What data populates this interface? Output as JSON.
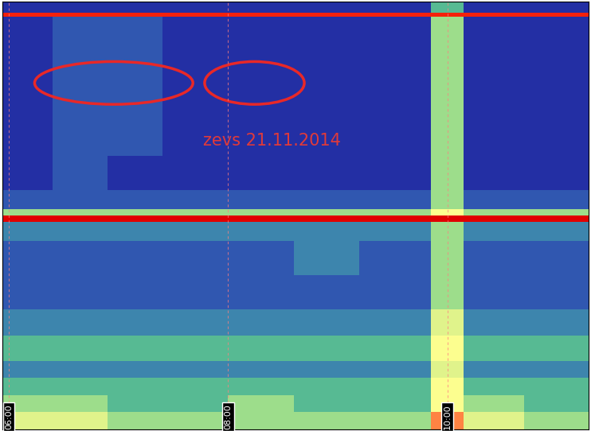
{
  "chart_data": {
    "type": "heatmap",
    "annotations": [
      "zevs 21.11.2014"
    ],
    "x_edges": [
      5.94,
      6.4,
      6.9,
      7.4,
      8.0,
      8.6,
      9.2,
      9.85,
      10.15,
      10.7,
      11.29
    ],
    "y_edges": [
      0,
      4,
      8,
      12,
      16,
      22,
      28,
      36,
      44,
      48.5,
      50,
      51.5,
      56,
      64,
      72,
      80,
      88,
      96.5,
      97.5,
      100
    ],
    "cells": [
      [
        6,
        6,
        5,
        5,
        5,
        5,
        5,
        8,
        6,
        5
      ],
      [
        5,
        5,
        4,
        4,
        5,
        4,
        4,
        7,
        5,
        4
      ],
      [
        4,
        4,
        4,
        4,
        4,
        4,
        4,
        7,
        4,
        4
      ],
      [
        3,
        3,
        3,
        3,
        3,
        3,
        3,
        6,
        3,
        3
      ],
      [
        4,
        4,
        4,
        4,
        4,
        4,
        4,
        7,
        4,
        4
      ],
      [
        3,
        3,
        3,
        3,
        3,
        3,
        3,
        6,
        3,
        3
      ],
      [
        2,
        2,
        2,
        2,
        2,
        2,
        2,
        5,
        2,
        2
      ],
      [
        2,
        2,
        2,
        2,
        2,
        3,
        2,
        5,
        2,
        2
      ],
      [
        3,
        3,
        3,
        3,
        3,
        3,
        3,
        5,
        3,
        3
      ],
      [
        10,
        10,
        10,
        10,
        10,
        10,
        10,
        10,
        10,
        10
      ],
      [
        5,
        5,
        5,
        5,
        5,
        5,
        5,
        7,
        5,
        5
      ],
      [
        2,
        2,
        2,
        2,
        2,
        2,
        2,
        5,
        2,
        2
      ],
      [
        1,
        2,
        1,
        1,
        1,
        1,
        1,
        5,
        1,
        1
      ],
      [
        1,
        2,
        2,
        1,
        1,
        1,
        1,
        5,
        1,
        1
      ],
      [
        1,
        2,
        2,
        1,
        1,
        1,
        1,
        5,
        1,
        1
      ],
      [
        1,
        2,
        2,
        1,
        1,
        1,
        1,
        5,
        1,
        1
      ],
      [
        1,
        2,
        2,
        1,
        1,
        1,
        1,
        5,
        1,
        1
      ],
      [
        9,
        9,
        9,
        9,
        9,
        9,
        9,
        9,
        9,
        9
      ],
      [
        1,
        1,
        1,
        1,
        1,
        1,
        1,
        4,
        1,
        1
      ]
    ],
    "xlim": [
      5.94,
      11.29
    ],
    "ylim": [
      0,
      100
    ],
    "xticks": [
      {
        "value": 6,
        "label": "06:00"
      },
      {
        "value": 8,
        "label": "08:00"
      },
      {
        "value": 10,
        "label": "10:00"
      }
    ],
    "zlim": [
      0,
      10
    ],
    "tick_labels": "x"
  }
}
